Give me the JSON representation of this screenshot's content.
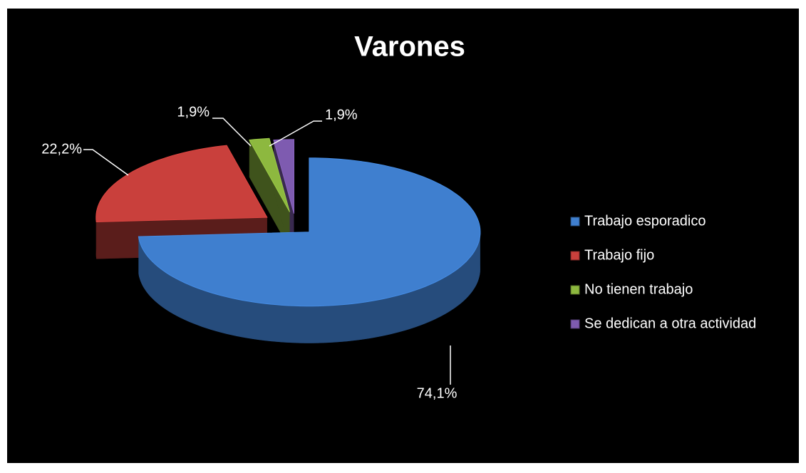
{
  "chart_data": {
    "type": "pie",
    "title": "Varones",
    "categories": [
      "Trabajo esporadico",
      "Trabajo fijo",
      "No tienen trabajo",
      "Se dedican a otra actividad"
    ],
    "values": [
      74.1,
      22.2,
      1.9,
      1.9
    ],
    "value_labels": [
      "74,1%",
      "22,2%",
      "1,9%",
      "1,9%"
    ],
    "colors": [
      "#3f7fcf",
      "#c9403c",
      "#8db83f",
      "#7e5bb0"
    ],
    "legend": "right"
  }
}
